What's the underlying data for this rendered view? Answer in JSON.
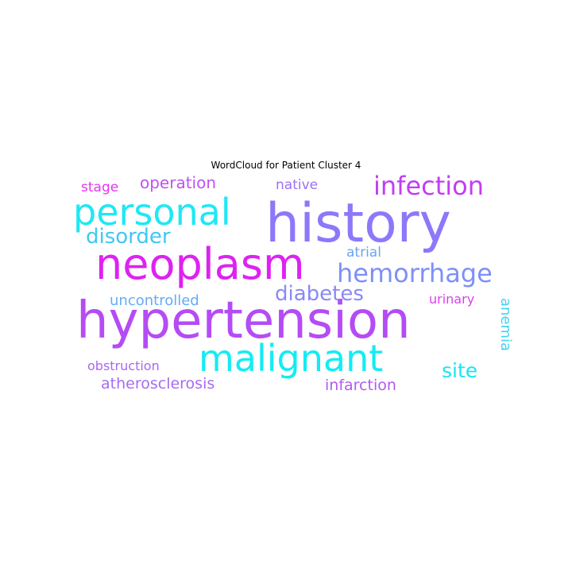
{
  "title": "WordCloud for Patient Cluster 4",
  "words": {
    "hypertension": {
      "text": "hypertension",
      "color": "#b44cf5"
    },
    "history": {
      "text": "history",
      "color": "#8c78fa"
    },
    "neoplasm": {
      "text": "neoplasm",
      "color": "#dd22f2"
    },
    "personal": {
      "text": "personal",
      "color": "#1ee8f5"
    },
    "malignant": {
      "text": "malignant",
      "color": "#13ecf3"
    },
    "infection": {
      "text": "infection",
      "color": "#c43cf4"
    },
    "hemorrhage": {
      "text": "hemorrhage",
      "color": "#7e90f8"
    },
    "disorder": {
      "text": "disorder",
      "color": "#3fc8f5"
    },
    "diabetes": {
      "text": "diabetes",
      "color": "#8a88f8"
    },
    "site": {
      "text": "site",
      "color": "#1ae4f2"
    },
    "operation": {
      "text": "operation",
      "color": "#c052f2"
    },
    "native": {
      "text": "native",
      "color": "#9c70f5"
    },
    "stage": {
      "text": "stage",
      "color": "#e436f0"
    },
    "atrial": {
      "text": "atrial",
      "color": "#6aa4f6"
    },
    "uncontrolled": {
      "text": "uncontrolled",
      "color": "#64acf5"
    },
    "urinary": {
      "text": "urinary",
      "color": "#dc3ef0"
    },
    "anemia": {
      "text": "anemia",
      "color": "#44d2f3"
    },
    "obstruction": {
      "text": "obstruction",
      "color": "#aa66f2"
    },
    "atherosclerosis": {
      "text": "atherosclerosis",
      "color": "#a66cf2"
    },
    "infarction": {
      "text": "infarction",
      "color": "#b25af2"
    }
  }
}
